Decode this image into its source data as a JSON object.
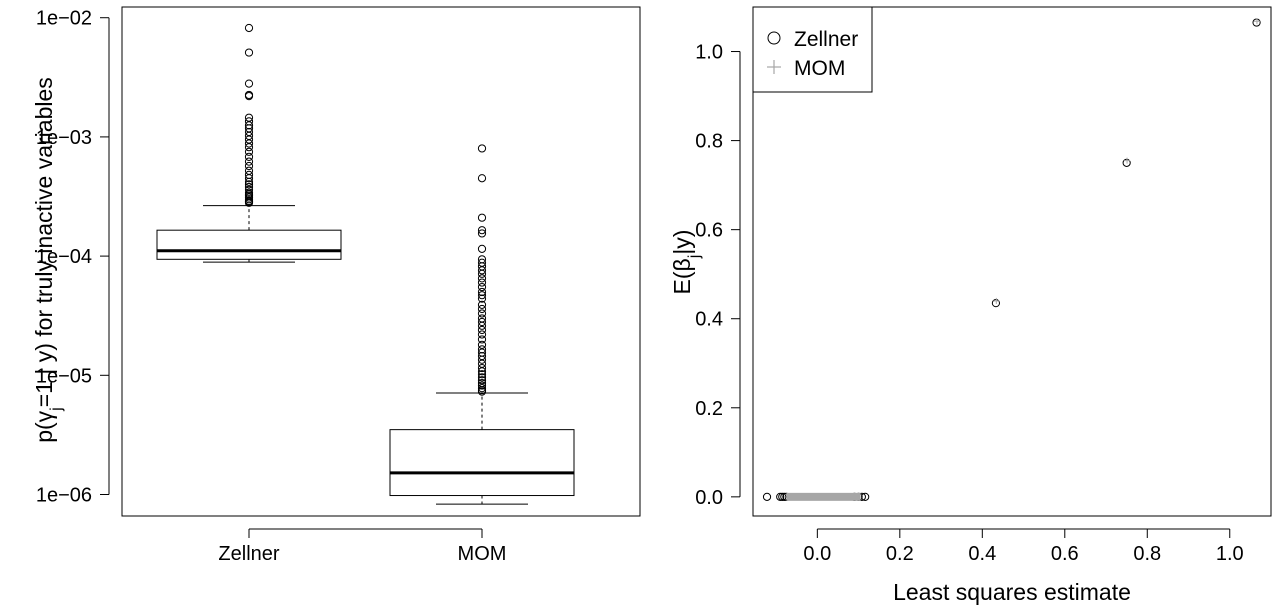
{
  "chart_data": [
    {
      "type": "box",
      "ylabel_parts": [
        "p(",
        "γ",
        "j",
        "=1 | y) for truly inactive variables"
      ],
      "yscale": "log",
      "ylim": [
        6.6e-07,
        0.0123
      ],
      "yticks": [
        {
          "value": 1e-06,
          "label": "1e−06"
        },
        {
          "value": 1e-05,
          "label": "1e−05"
        },
        {
          "value": 0.0001,
          "label": "1e−04"
        },
        {
          "value": 0.001,
          "label": "1e−03"
        },
        {
          "value": 0.01,
          "label": "1e−02"
        }
      ],
      "categories": [
        "Zellner",
        "MOM"
      ],
      "boxes": [
        {
          "name": "Zellner",
          "whisker_low": 8.9e-05,
          "q1": 9.4e-05,
          "median": 0.000111,
          "q3": 0.000165,
          "whisker_high": 0.000265,
          "outliers": [
            0.0082,
            0.0051,
            0.0028,
            0.00225,
            0.0022,
            0.00145,
            0.00135,
            0.00125,
            0.00118,
            0.0011,
            0.00102,
            0.00095,
            0.00088,
            0.00082,
            0.00075,
            0.00068,
            0.00062,
            0.00057,
            0.00052,
            0.00048,
            0.00045,
            0.00042,
            0.0004,
            0.00038,
            0.00036,
            0.00034,
            0.00033,
            0.00032,
            0.00031,
            0.0003,
            0.00029,
            0.000285,
            0.00028
          ]
        },
        {
          "name": "MOM",
          "whisker_low": 8.3e-07,
          "q1": 9.8e-07,
          "median": 1.52e-06,
          "q3": 3.5e-06,
          "whisker_high": 7.1e-06,
          "outliers": [
            0.0008,
            0.00045,
            0.00021,
            0.000165,
            0.000155,
            0.000115,
            9.4e-05,
            8.8e-05,
            8.2e-05,
            7.6e-05,
            7.1e-05,
            6.5e-05,
            6e-05,
            5.5e-05,
            5e-05,
            4.7e-05,
            4.4e-05,
            3.9e-05,
            3.6e-05,
            3.3e-05,
            3e-05,
            2.8e-05,
            2.6e-05,
            2.4e-05,
            2.2e-05,
            2e-05,
            1.8e-05,
            1.65e-05,
            1.55e-05,
            1.45e-05,
            1.35e-05,
            1.25e-05,
            1.15e-05,
            1.08e-05,
            1.02e-05,
            9.6e-06,
            9.1e-06,
            8.6e-06,
            8.2e-06,
            7.8e-06,
            7.5e-06,
            7.3e-06
          ]
        }
      ]
    },
    {
      "type": "scatter",
      "xlabel": "Least squares estimate",
      "ylabel_parts": [
        "E(",
        "β",
        "j",
        "|y)"
      ],
      "xlim": [
        -0.156,
        1.1
      ],
      "ylim": [
        -0.043,
        1.1
      ],
      "xticks": [
        {
          "value": 0.0,
          "label": "0.0"
        },
        {
          "value": 0.2,
          "label": "0.2"
        },
        {
          "value": 0.4,
          "label": "0.4"
        },
        {
          "value": 0.6,
          "label": "0.6"
        },
        {
          "value": 0.8,
          "label": "0.8"
        },
        {
          "value": 1.0,
          "label": "1.0"
        }
      ],
      "yticks": [
        {
          "value": 0.0,
          "label": "0.0"
        },
        {
          "value": 0.2,
          "label": "0.2"
        },
        {
          "value": 0.4,
          "label": "0.4"
        },
        {
          "value": 0.6,
          "label": "0.6"
        },
        {
          "value": 0.8,
          "label": "0.8"
        },
        {
          "value": 1.0,
          "label": "1.0"
        }
      ],
      "legend_position": "top-left",
      "series": [
        {
          "name": "Zellner",
          "marker": "circle",
          "color": "#000000",
          "points": [
            [
              -0.122,
              0.0
            ],
            [
              -0.09,
              0.0
            ],
            [
              -0.085,
              0.0
            ],
            [
              -0.08,
              0.0
            ],
            [
              -0.075,
              0.0
            ],
            [
              0.09,
              0.0
            ],
            [
              0.1,
              0.0
            ],
            [
              0.108,
              0.0
            ],
            [
              0.116,
              0.0
            ],
            [
              0.433,
              0.435
            ],
            [
              0.75,
              0.75
            ],
            [
              1.065,
              1.065
            ]
          ]
        },
        {
          "name": "MOM",
          "marker": "plus",
          "color": "#a6a6a6",
          "points": [
            [
              0.434,
              0.44
            ],
            [
              0.751,
              0.755
            ],
            [
              1.066,
              1.068
            ]
          ],
          "dense_band": {
            "x_from": -0.075,
            "x_to": 0.105,
            "y": 0.0
          }
        }
      ]
    }
  ]
}
